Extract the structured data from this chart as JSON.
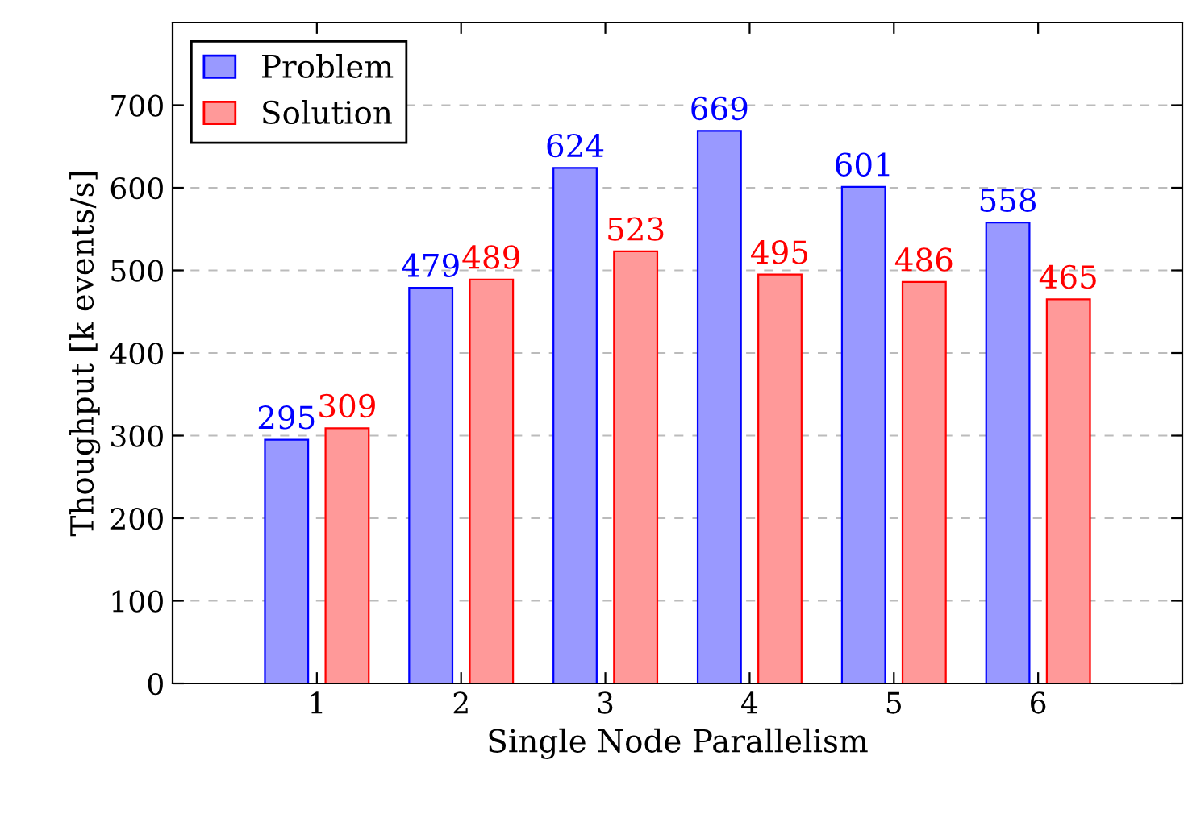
{
  "chart_data": {
    "type": "bar",
    "xlabel": "Single Node Parallelism",
    "ylabel": "Thoughput [k events/s]",
    "x": [
      1,
      2,
      3,
      4,
      5,
      6
    ],
    "xlim": [
      0,
      7
    ],
    "xticks": [
      1,
      2,
      3,
      4,
      5,
      6
    ],
    "ylim": [
      0,
      800
    ],
    "yticks": [
      0,
      100,
      200,
      300,
      400,
      500,
      600,
      700
    ],
    "series": [
      {
        "name": "Problem",
        "color": "#9999ff",
        "values": [
          295,
          479,
          624,
          669,
          601,
          558
        ]
      },
      {
        "name": "Solution",
        "color": "#ff9999",
        "values": [
          309,
          489,
          523,
          495,
          486,
          465
        ]
      }
    ],
    "data_labels": true,
    "grid": "y",
    "legend": "top left"
  }
}
